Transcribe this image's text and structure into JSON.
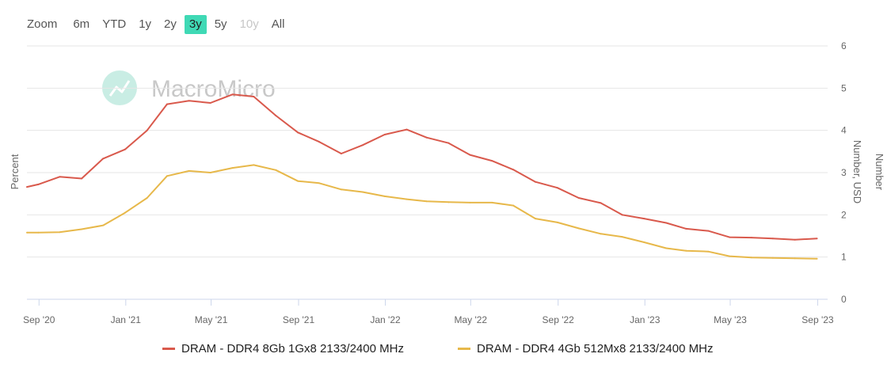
{
  "range_selector": {
    "buttons": [
      {
        "label": "Zoom",
        "state": "label"
      },
      {
        "label": "6m",
        "state": "normal"
      },
      {
        "label": "YTD",
        "state": "normal"
      },
      {
        "label": "1y",
        "state": "normal"
      },
      {
        "label": "2y",
        "state": "normal"
      },
      {
        "label": "3y",
        "state": "active"
      },
      {
        "label": "5y",
        "state": "normal"
      },
      {
        "label": "10y",
        "state": "disabled"
      },
      {
        "label": "All",
        "state": "normal"
      }
    ],
    "active_color": "#3fd9b5"
  },
  "watermark": {
    "text": "MacroMicro",
    "icon": "macromicro-logo-icon"
  },
  "chart_data": {
    "type": "line",
    "ylabel_left": "Percent",
    "ylabel_right_1": "Number, USD",
    "ylabel_right_2": "Number",
    "ylim": [
      0,
      6
    ],
    "yticks": [
      0,
      1,
      2,
      3,
      4,
      5,
      6
    ],
    "xlim": [
      "2020-08-15",
      "2023-09-15"
    ],
    "xticks": [
      {
        "label": "Sep '20",
        "date": "2020-09-01"
      },
      {
        "label": "Jan '21",
        "date": "2021-01-01"
      },
      {
        "label": "May '21",
        "date": "2021-05-01"
      },
      {
        "label": "Sep '21",
        "date": "2021-09-01"
      },
      {
        "label": "Jan '22",
        "date": "2022-01-01"
      },
      {
        "label": "May '22",
        "date": "2022-05-01"
      },
      {
        "label": "Sep '22",
        "date": "2022-09-01"
      },
      {
        "label": "Jan '23",
        "date": "2023-01-01"
      },
      {
        "label": "May '23",
        "date": "2023-05-01"
      },
      {
        "label": "Sep '23",
        "date": "2023-09-01"
      }
    ],
    "grid": true,
    "legend_position": "bottom",
    "series": [
      {
        "name": "DRAM - DDR4 8Gb 1Gx8 2133/2400 MHz",
        "color": "#d9594c",
        "points": [
          [
            "2020-08-15",
            2.66
          ],
          [
            "2020-08-31",
            2.72
          ],
          [
            "2020-09-30",
            2.9
          ],
          [
            "2020-10-31",
            2.86
          ],
          [
            "2020-11-30",
            3.33
          ],
          [
            "2020-12-31",
            3.55
          ],
          [
            "2021-01-31",
            4.0
          ],
          [
            "2021-02-28",
            4.62
          ],
          [
            "2021-03-31",
            4.7
          ],
          [
            "2021-04-30",
            4.65
          ],
          [
            "2021-05-31",
            4.85
          ],
          [
            "2021-06-30",
            4.8
          ],
          [
            "2021-07-31",
            4.35
          ],
          [
            "2021-08-31",
            3.95
          ],
          [
            "2021-09-30",
            3.73
          ],
          [
            "2021-10-31",
            3.45
          ],
          [
            "2021-11-30",
            3.65
          ],
          [
            "2021-12-31",
            3.9
          ],
          [
            "2022-01-31",
            4.02
          ],
          [
            "2022-02-28",
            3.83
          ],
          [
            "2022-03-31",
            3.7
          ],
          [
            "2022-04-30",
            3.42
          ],
          [
            "2022-05-31",
            3.28
          ],
          [
            "2022-06-30",
            3.07
          ],
          [
            "2022-07-31",
            2.78
          ],
          [
            "2022-08-31",
            2.64
          ],
          [
            "2022-09-30",
            2.4
          ],
          [
            "2022-10-31",
            2.28
          ],
          [
            "2022-11-30",
            2.0
          ],
          [
            "2022-12-31",
            1.91
          ],
          [
            "2023-01-31",
            1.81
          ],
          [
            "2023-02-28",
            1.67
          ],
          [
            "2023-03-31",
            1.62
          ],
          [
            "2023-04-30",
            1.47
          ],
          [
            "2023-05-31",
            1.46
          ],
          [
            "2023-06-30",
            1.44
          ],
          [
            "2023-07-31",
            1.41
          ],
          [
            "2023-08-31",
            1.44
          ]
        ]
      },
      {
        "name": "DRAM - DDR4 4Gb 512Mx8 2133/2400 MHz",
        "color": "#e7b84a",
        "points": [
          [
            "2020-08-15",
            1.58
          ],
          [
            "2020-08-31",
            1.58
          ],
          [
            "2020-09-30",
            1.59
          ],
          [
            "2020-10-31",
            1.66
          ],
          [
            "2020-11-30",
            1.75
          ],
          [
            "2020-12-31",
            2.05
          ],
          [
            "2021-01-31",
            2.4
          ],
          [
            "2021-02-28",
            2.92
          ],
          [
            "2021-03-31",
            3.04
          ],
          [
            "2021-04-30",
            3.0
          ],
          [
            "2021-05-31",
            3.11
          ],
          [
            "2021-06-30",
            3.18
          ],
          [
            "2021-07-31",
            3.06
          ],
          [
            "2021-08-31",
            2.8
          ],
          [
            "2021-09-30",
            2.75
          ],
          [
            "2021-10-31",
            2.6
          ],
          [
            "2021-11-30",
            2.54
          ],
          [
            "2021-12-31",
            2.44
          ],
          [
            "2022-01-31",
            2.37
          ],
          [
            "2022-02-28",
            2.32
          ],
          [
            "2022-03-31",
            2.3
          ],
          [
            "2022-04-30",
            2.29
          ],
          [
            "2022-05-31",
            2.29
          ],
          [
            "2022-06-30",
            2.22
          ],
          [
            "2022-07-31",
            1.91
          ],
          [
            "2022-08-31",
            1.82
          ],
          [
            "2022-09-30",
            1.68
          ],
          [
            "2022-10-31",
            1.55
          ],
          [
            "2022-11-30",
            1.48
          ],
          [
            "2022-12-31",
            1.35
          ],
          [
            "2023-01-31",
            1.21
          ],
          [
            "2023-02-28",
            1.15
          ],
          [
            "2023-03-31",
            1.13
          ],
          [
            "2023-04-30",
            1.02
          ],
          [
            "2023-05-31",
            0.99
          ],
          [
            "2023-06-30",
            0.98
          ],
          [
            "2023-07-31",
            0.97
          ],
          [
            "2023-08-31",
            0.96
          ]
        ]
      }
    ]
  }
}
